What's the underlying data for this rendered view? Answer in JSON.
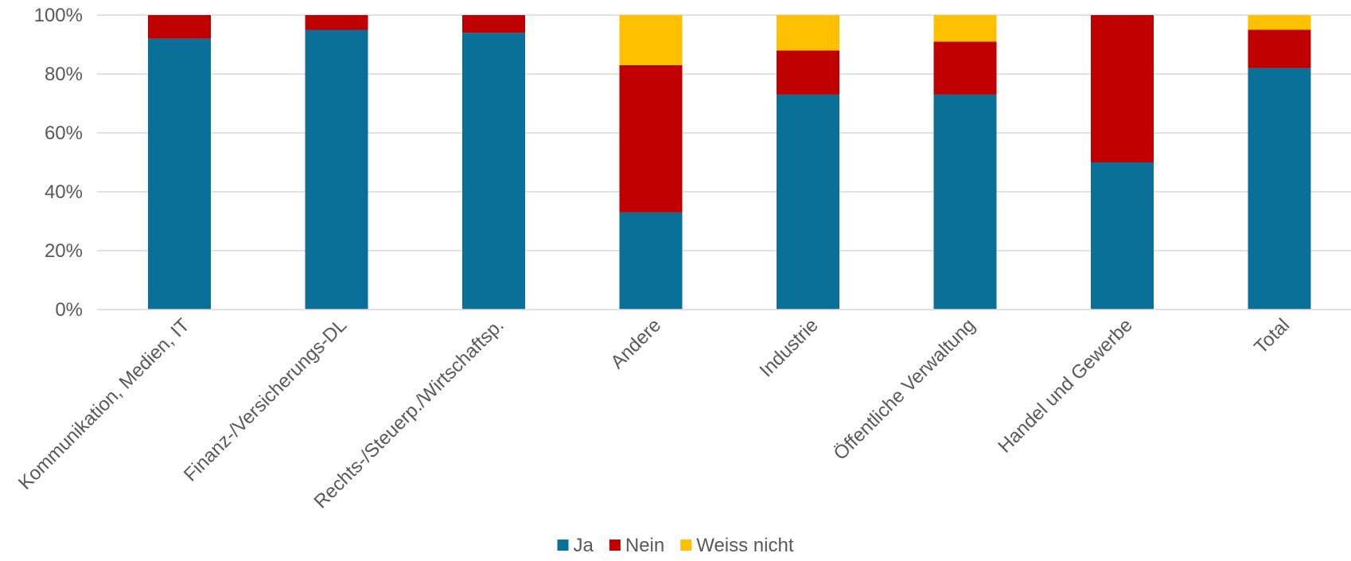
{
  "chart_data": {
    "type": "bar",
    "stacked": true,
    "categories": [
      "Kommunikation, Medien, IT",
      "Finanz-/Versicherungs-DL",
      "Rechts-/Steuerp./Wirtschaftsp.",
      "Andere",
      "Industrie",
      "Öffentliche Verwaltung",
      "Handel und Gewerbe",
      "Total"
    ],
    "series": [
      {
        "name": "Ja",
        "color": "#0B7097",
        "values": [
          92,
          95,
          94,
          33,
          73,
          73,
          50,
          82
        ]
      },
      {
        "name": "Nein",
        "color": "#C00000",
        "values": [
          8,
          5,
          6,
          50,
          15,
          18,
          50,
          13
        ]
      },
      {
        "name": "Weiss nicht",
        "color": "#FFC000",
        "values": [
          0,
          0,
          0,
          17,
          12,
          9,
          0,
          5
        ]
      }
    ],
    "yticks": [
      "0%",
      "20%",
      "40%",
      "60%",
      "80%",
      "100%"
    ],
    "ylim": [
      0,
      100
    ],
    "title": "",
    "xlabel": "",
    "ylabel": "",
    "grid": true,
    "legend": "bottom-center"
  }
}
